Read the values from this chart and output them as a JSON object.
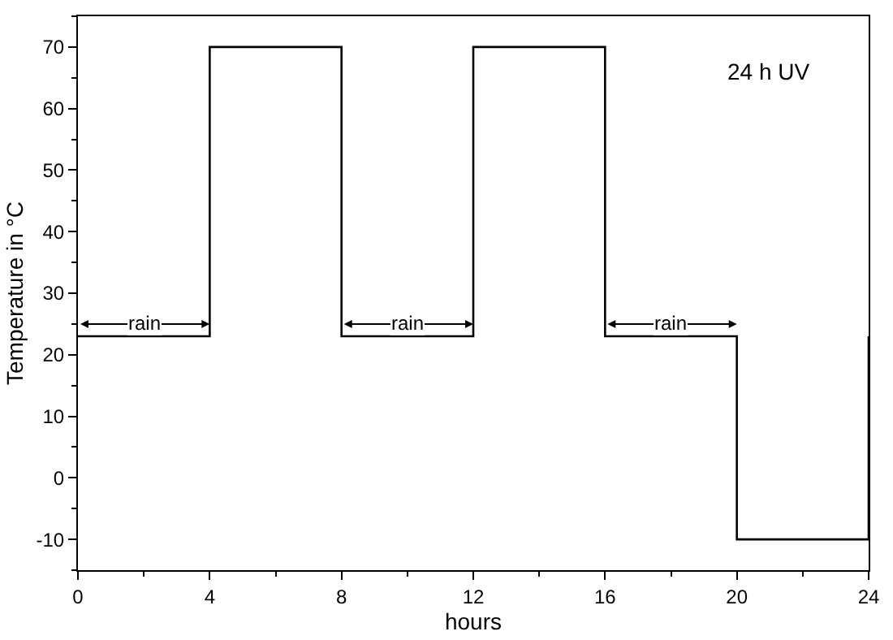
{
  "chart_data": {
    "type": "line",
    "xlabel": "hours",
    "ylabel": "Temperature in °C",
    "x": [
      0,
      4,
      4,
      8,
      8,
      12,
      12,
      16,
      16,
      20,
      20,
      24,
      24
    ],
    "series": [
      {
        "color": "#000000",
        "values": [
          23,
          23,
          70,
          70,
          23,
          23,
          70,
          70,
          23,
          23,
          -10,
          -10,
          23
        ]
      }
    ],
    "xlim": [
      0,
      24
    ],
    "xticks": [
      0,
      4,
      8,
      12,
      16,
      20,
      24
    ],
    "ylim": [
      -15,
      75
    ],
    "yticks": [
      -10,
      0,
      10,
      20,
      30,
      40,
      50,
      60,
      70
    ],
    "annotations": [
      "24 h UV",
      {
        "text": "rain",
        "x": 2,
        "y": 25
      },
      {
        "text": "rain",
        "x": 10,
        "y": 25
      },
      {
        "text": "rain",
        "x": 18,
        "y": 25
      }
    ],
    "grid": false,
    "marker": "none",
    "line_style": "solid"
  }
}
